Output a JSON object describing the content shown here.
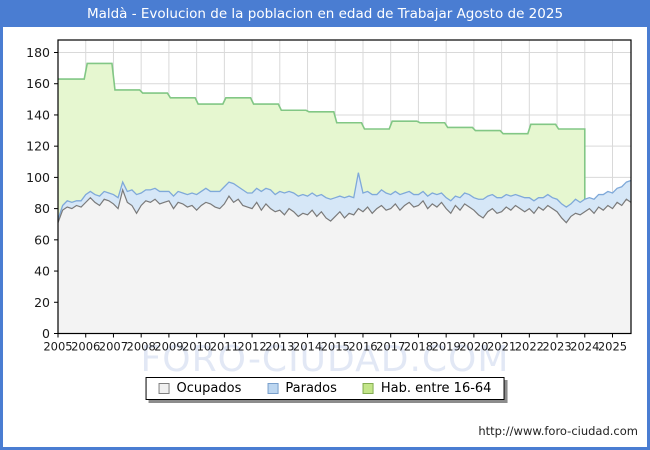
{
  "title_bar": {
    "text": "Maldà - Evolucion de la poblacion en edad de Trabajar Agosto de 2025"
  },
  "watermark": "FORO-CIUDAD.COM",
  "footer": {
    "url": "http://www.foro-ciudad.com"
  },
  "colors": {
    "accent_blue": "#4a7dd2",
    "title_text": "#ffffff",
    "plot_background": "#ffffff",
    "gridline": "#d9d9d9",
    "axis_frame": "#000000",
    "hab_fill": "#e6f7d0",
    "hab_line": "#82c785",
    "parados_fill": "#d6e7f7",
    "parados_line": "#7fa9d9",
    "ocupados_fill": "#f3f3f3",
    "ocupados_line": "#7a7a7a",
    "watermark_color": "#e2e8f5"
  },
  "legend": {
    "items": [
      {
        "label": "Ocupados",
        "fill": "#f0f0f0",
        "border": "#808080"
      },
      {
        "label": "Parados",
        "fill": "#bcd6f0",
        "border": "#7aa0cc"
      },
      {
        "label": "Hab. entre 16-64",
        "fill": "#c3e589",
        "border": "#84ad52"
      }
    ]
  },
  "chart_data": {
    "type": "area",
    "title": "Maldà - Evolucion de la poblacion en edad de Trabajar Agosto de 2025",
    "xlabel": "",
    "ylabel": "",
    "x_axis": {
      "ticks": [
        2005,
        2006,
        2007,
        2008,
        2009,
        2010,
        2011,
        2012,
        2013,
        2014,
        2015,
        2016,
        2017,
        2018,
        2019,
        2020,
        2021,
        2022,
        2023,
        2024,
        2025
      ],
      "range": [
        2005,
        2025.667
      ],
      "grid": true
    },
    "y_axis": {
      "ticks": [
        0,
        20,
        40,
        60,
        80,
        100,
        120,
        140,
        160,
        180
      ],
      "range": [
        0,
        188
      ],
      "grid": true
    },
    "legend_position": "bottom",
    "series": [
      {
        "name": "Hab. entre 16-64",
        "type": "step-area-annual",
        "x_start": 2005,
        "x_step": 1,
        "x_end": 2024,
        "values": [
          163,
          173,
          156,
          154,
          151,
          147,
          151,
          147,
          143,
          142,
          135,
          131,
          136,
          135,
          132,
          130,
          128,
          134,
          131
        ]
      },
      {
        "name": "Ocupados",
        "type": "area-line-monthly",
        "x_start": 2005,
        "x_step": 0.166667,
        "values": [
          71,
          79,
          81,
          80,
          82,
          81,
          84,
          87,
          84,
          82,
          86,
          85,
          83,
          80,
          92,
          84,
          82,
          77,
          82,
          85,
          84,
          86,
          83,
          84,
          85,
          80,
          84,
          83,
          81,
          82,
          79,
          82,
          84,
          83,
          81,
          80,
          83,
          88,
          84,
          86,
          82,
          81,
          80,
          84,
          79,
          83,
          80,
          78,
          79,
          76,
          80,
          78,
          75,
          77,
          76,
          79,
          75,
          78,
          74,
          72,
          75,
          78,
          74,
          77,
          76,
          80,
          78,
          81,
          77,
          80,
          82,
          79,
          80,
          83,
          79,
          82,
          84,
          81,
          82,
          85,
          80,
          83,
          81,
          84,
          80,
          77,
          82,
          79,
          83,
          81,
          79,
          76,
          74,
          78,
          80,
          77,
          78,
          81,
          79,
          82,
          80,
          78,
          80,
          77,
          81,
          79,
          82,
          80,
          78,
          74,
          71,
          75,
          77,
          76,
          78,
          80,
          77,
          81,
          79,
          82,
          80,
          84,
          82,
          86,
          84
        ]
      },
      {
        "name": "Parados",
        "type": "stacked-band-on-ocupados",
        "x_start": 2005,
        "x_step": 0.166667,
        "values": [
          2,
          3,
          4,
          4,
          3,
          4,
          5,
          4,
          5,
          6,
          5,
          5,
          6,
          7,
          5,
          7,
          10,
          12,
          8,
          7,
          8,
          7,
          8,
          7,
          6,
          8,
          7,
          7,
          8,
          8,
          10,
          9,
          9,
          8,
          10,
          11,
          11,
          9,
          12,
          8,
          10,
          9,
          10,
          9,
          12,
          10,
          12,
          11,
          12,
          14,
          11,
          12,
          13,
          12,
          12,
          11,
          13,
          11,
          13,
          14,
          12,
          10,
          13,
          11,
          11,
          23,
          12,
          10,
          12,
          9,
          10,
          11,
          9,
          8,
          10,
          8,
          7,
          8,
          7,
          6,
          8,
          7,
          8,
          6,
          7,
          8,
          6,
          8,
          7,
          8,
          8,
          10,
          12,
          10,
          9,
          10,
          9,
          8,
          9,
          7,
          8,
          9,
          7,
          8,
          6,
          8,
          7,
          7,
          8,
          9,
          10,
          8,
          9,
          8,
          8,
          7,
          9,
          8,
          10,
          9,
          10,
          9,
          12,
          11,
          14
        ]
      }
    ]
  }
}
